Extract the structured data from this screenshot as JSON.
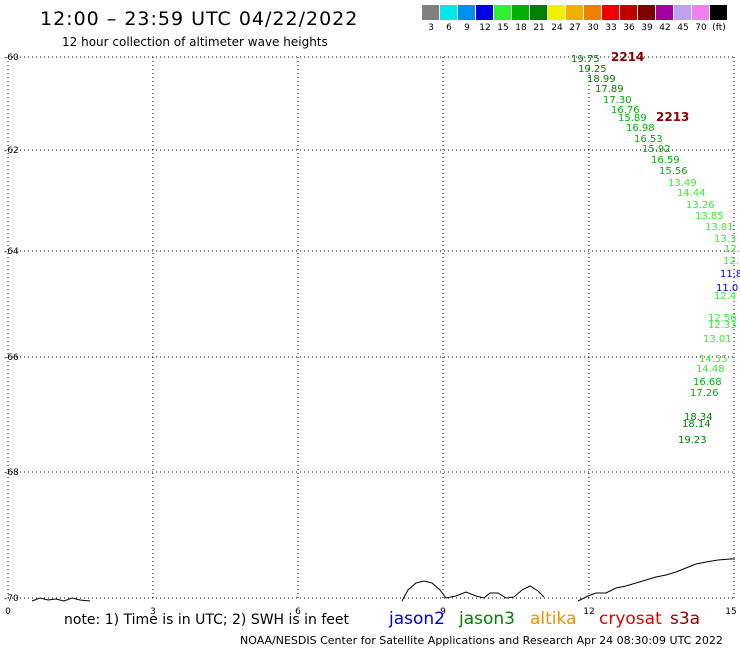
{
  "header": {
    "title": "12:00 – 23:59 UTC 04/22/2022",
    "subtitle": "12 hour collection of altimeter wave heights"
  },
  "legend": {
    "swatches": [
      {
        "color": "#808080",
        "label": "3"
      },
      {
        "color": "#00e8e8",
        "label": "6"
      },
      {
        "color": "#0090f0",
        "label": "9"
      },
      {
        "color": "#0000e0",
        "label": "12"
      },
      {
        "color": "#30f030",
        "label": "15"
      },
      {
        "color": "#00b000",
        "label": "18"
      },
      {
        "color": "#008000",
        "label": "21"
      },
      {
        "color": "#f0f000",
        "label": "24"
      },
      {
        "color": "#f0b000",
        "label": "27"
      },
      {
        "color": "#f08000",
        "label": "30"
      },
      {
        "color": "#f00000",
        "label": "33"
      },
      {
        "color": "#c00000",
        "label": "36"
      },
      {
        "color": "#800000",
        "label": "39"
      },
      {
        "color": "#a000a0",
        "label": "42"
      },
      {
        "color": "#c0a0f0",
        "label": "45"
      },
      {
        "color": "#f080f0",
        "label": "70"
      },
      {
        "color": "#000000",
        "label": "(ft)"
      }
    ]
  },
  "map": {
    "lat_labels": [
      "-60",
      "-62",
      "-64",
      "-66",
      "-68",
      "-70"
    ],
    "lon_labels": [
      "0",
      "3",
      "6",
      "9",
      "12",
      "15"
    ],
    "track_ids": [
      {
        "text": "2214",
        "color": "#8b0000"
      },
      {
        "text": "2213",
        "color": "#8b0000"
      }
    ],
    "observations": [
      {
        "v": "19.75",
        "c": "#008000"
      },
      {
        "v": "19.25",
        "c": "#008000"
      },
      {
        "v": "18.99",
        "c": "#008000"
      },
      {
        "v": "17.89",
        "c": "#008000"
      },
      {
        "v": "17.30",
        "c": "#00b000"
      },
      {
        "v": "16.76",
        "c": "#00b000"
      },
      {
        "v": "15.89",
        "c": "#00b000"
      },
      {
        "v": "16.98",
        "c": "#00b000"
      },
      {
        "v": "16.53",
        "c": "#00b000"
      },
      {
        "v": "15.92",
        "c": "#00b000"
      },
      {
        "v": "16.59",
        "c": "#00b000"
      },
      {
        "v": "15.56",
        "c": "#00b000"
      },
      {
        "v": "13.49",
        "c": "#30f030"
      },
      {
        "v": "14.44",
        "c": "#30f030"
      },
      {
        "v": "13.26",
        "c": "#30f030"
      },
      {
        "v": "13.85",
        "c": "#30f030"
      },
      {
        "v": "13.81",
        "c": "#30f030"
      },
      {
        "v": "13.3",
        "c": "#30f030"
      },
      {
        "v": "12.",
        "c": "#30f030"
      },
      {
        "v": "12.",
        "c": "#30f030"
      },
      {
        "v": "11.8",
        "c": "#0000e0"
      },
      {
        "v": "11.0",
        "c": "#0000e0"
      },
      {
        "v": "12.4",
        "c": "#30f030"
      },
      {
        "v": "12.56",
        "c": "#30f030"
      },
      {
        "v": "12.33",
        "c": "#30f030"
      },
      {
        "v": "13.01",
        "c": "#30f030"
      },
      {
        "v": "14.55",
        "c": "#30f030"
      },
      {
        "v": "14.48",
        "c": "#30f030"
      },
      {
        "v": "16.68",
        "c": "#00b000"
      },
      {
        "v": "17.26",
        "c": "#00b000"
      },
      {
        "v": "18.34",
        "c": "#008000"
      },
      {
        "v": "18.14",
        "c": "#008000"
      },
      {
        "v": "19.23",
        "c": "#008000"
      }
    ]
  },
  "footer": {
    "note": "note: 1) Time is in UTC; 2) SWH is in feet",
    "satellites": [
      {
        "name": "jason2",
        "color": "#0000d0"
      },
      {
        "name": "jason3",
        "color": "#008000"
      },
      {
        "name": "altika",
        "color": "#f09000"
      },
      {
        "name": "cryosat",
        "color": "#e00000"
      },
      {
        "name": "s3a",
        "color": "#8b0000"
      }
    ],
    "credit": "NOAA/NESDIS Center for Satellite Applications and Research   Apr 24 08:30:09 UTC 2022"
  }
}
